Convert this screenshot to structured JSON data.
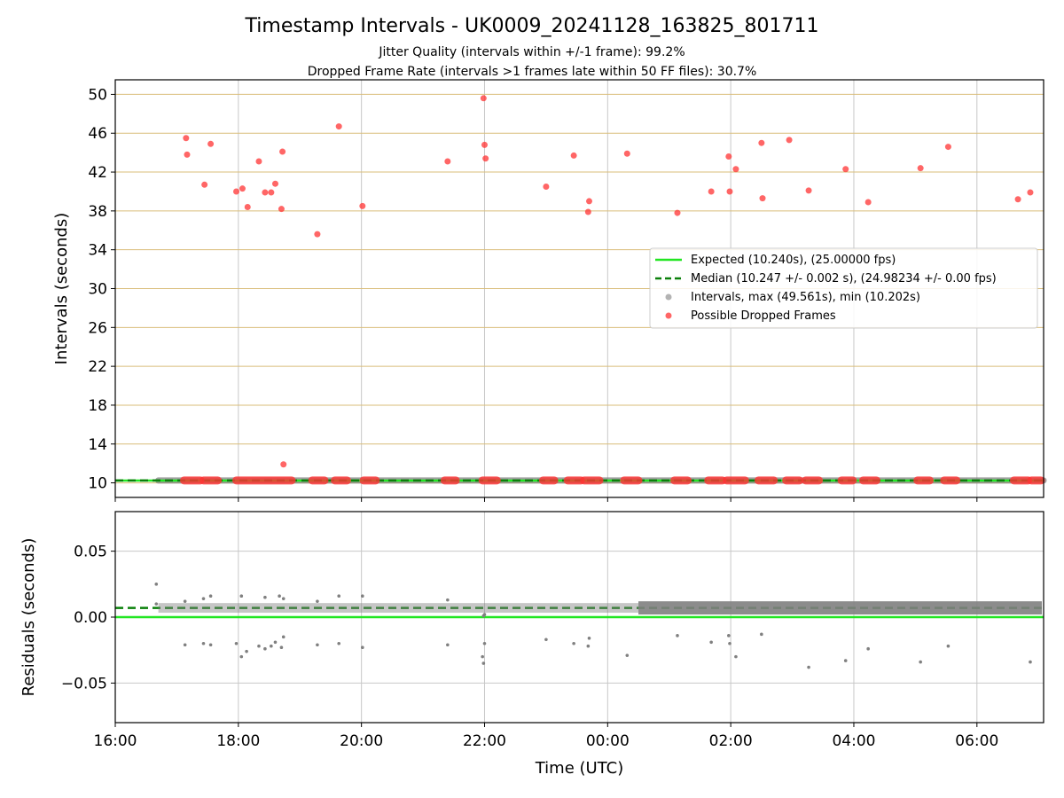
{
  "figure": {
    "title": "Timestamp Intervals - UK0009_20241128_163825_801711",
    "subtitle_line1": "Jitter Quality (intervals within +/-1 frame): 99.2%",
    "subtitle_line2": "Dropped Frame Rate (intervals >1 frames late within 50 FF files): 30.7%"
  },
  "colors": {
    "expected": "#22e622",
    "median": "#0a800a",
    "intervals": "#808080",
    "dropped": "#ff3333",
    "hgrid_top": "#d9bd7a",
    "grid": "#c8c8c8"
  },
  "chart_data": [
    {
      "type": "scatter",
      "name": "intervals_panel",
      "xlabel": "",
      "ylabel": "Intervals (seconds)",
      "xlim": [
        "16:00",
        "07:05"
      ],
      "ylim": [
        8.5,
        51.5
      ],
      "yticks": [
        10,
        14,
        18,
        22,
        26,
        30,
        34,
        38,
        42,
        46,
        50
      ],
      "grid": "both",
      "legend_position": "center-right",
      "legend": [
        "Expected (10.240s), (25.00000 fps)",
        "Median (10.247 +/- 0.002 s), (24.98234 +/- 0.00 fps)",
        "Intervals, max (49.561s), min (10.202s)",
        "Possible Dropped Frames"
      ],
      "lines": [
        {
          "label_index": 0,
          "y": 10.24,
          "style": "solid"
        },
        {
          "label_index": 1,
          "y": 10.247,
          "style": "dashed"
        }
      ],
      "interval_band": {
        "x_start": "16:42",
        "x_end": "07:05",
        "y": 10.247
      },
      "dropped_frames_high": [
        [
          "17:09",
          45.5
        ],
        [
          "17:10",
          43.8
        ],
        [
          "17:27",
          40.7
        ],
        [
          "17:33",
          44.9
        ],
        [
          "17:58",
          40.0
        ],
        [
          "18:04",
          40.3
        ],
        [
          "18:09",
          38.4
        ],
        [
          "18:20",
          43.1
        ],
        [
          "18:26",
          39.9
        ],
        [
          "18:32",
          39.9
        ],
        [
          "18:36",
          40.8
        ],
        [
          "18:42",
          38.2
        ],
        [
          "18:43",
          44.1
        ],
        [
          "18:44",
          11.9
        ],
        [
          "19:17",
          35.6
        ],
        [
          "19:38",
          46.7
        ],
        [
          "20:01",
          38.5
        ],
        [
          "21:24",
          43.1
        ],
        [
          "21:59",
          49.6
        ],
        [
          "22:00",
          44.8
        ],
        [
          "22:01",
          43.4
        ],
        [
          "23:00",
          40.5
        ],
        [
          "23:27",
          43.7
        ],
        [
          "23:41",
          37.9
        ],
        [
          "23:42",
          39.0
        ],
        [
          "00:19",
          43.9
        ],
        [
          "01:08",
          37.8
        ],
        [
          "01:41",
          40.0
        ],
        [
          "01:58",
          43.6
        ],
        [
          "01:59",
          40.0
        ],
        [
          "02:05",
          42.3
        ],
        [
          "02:30",
          45.0
        ],
        [
          "02:31",
          39.3
        ],
        [
          "02:57",
          45.3
        ],
        [
          "03:16",
          40.1
        ],
        [
          "03:52",
          42.3
        ],
        [
          "04:14",
          38.9
        ],
        [
          "05:05",
          42.4
        ],
        [
          "05:32",
          44.6
        ],
        [
          "06:40",
          39.2
        ],
        [
          "06:52",
          39.9
        ]
      ],
      "dropped_frames_base_spans": [
        [
          "17:07",
          "17:23"
        ],
        [
          "17:26",
          "17:40"
        ],
        [
          "17:58",
          "18:52"
        ],
        [
          "19:12",
          "19:24"
        ],
        [
          "19:34",
          "19:46"
        ],
        [
          "20:02",
          "20:14"
        ],
        [
          "21:21",
          "21:32"
        ],
        [
          "21:58",
          "22:12"
        ],
        [
          "22:57",
          "23:08"
        ],
        [
          "23:21",
          "23:34"
        ],
        [
          "23:37",
          "23:52"
        ],
        [
          "00:16",
          "00:30"
        ],
        [
          "01:05",
          "01:18"
        ],
        [
          "01:38",
          "01:52"
        ],
        [
          "01:56",
          "02:14"
        ],
        [
          "02:27",
          "02:42"
        ],
        [
          "02:54",
          "03:07"
        ],
        [
          "03:13",
          "03:26"
        ],
        [
          "03:48",
          "03:59"
        ],
        [
          "04:09",
          "04:22"
        ],
        [
          "05:02",
          "05:14"
        ],
        [
          "05:28",
          "05:40"
        ],
        [
          "06:36",
          "06:50"
        ],
        [
          "06:53",
          "07:05"
        ]
      ]
    },
    {
      "type": "scatter",
      "name": "residuals_panel",
      "xlabel": "Time (UTC)",
      "ylabel": "Residuals (seconds)",
      "xlim": [
        "16:00",
        "07:05"
      ],
      "ylim": [
        -0.08,
        0.08
      ],
      "yticks": [
        0.05,
        0.0,
        -0.05
      ],
      "ytick_labels": [
        "0.05",
        "0.00",
        "−0.05"
      ],
      "xticks": [
        "16:00",
        "18:00",
        "20:00",
        "22:00",
        "00:00",
        "02:00",
        "04:00",
        "06:00"
      ],
      "grid": "both",
      "expected_line_y": 0.0,
      "median_line_y": 0.007,
      "residual_band": {
        "x_start": "16:42",
        "x_end": "07:05",
        "y_min": 0.002,
        "y_max": 0.012,
        "dense_from": "00:30"
      },
      "residual_outliers": [
        [
          "16:40",
          0.025
        ],
        [
          "17:08",
          -0.021
        ],
        [
          "17:26",
          -0.02
        ],
        [
          "17:33",
          -0.021
        ],
        [
          "17:58",
          -0.02
        ],
        [
          "18:03",
          -0.03
        ],
        [
          "18:08",
          -0.026
        ],
        [
          "18:20",
          -0.022
        ],
        [
          "18:26",
          -0.024
        ],
        [
          "18:32",
          -0.022
        ],
        [
          "18:36",
          -0.019
        ],
        [
          "18:42",
          -0.023
        ],
        [
          "18:44",
          -0.015
        ],
        [
          "19:17",
          -0.021
        ],
        [
          "19:38",
          -0.02
        ],
        [
          "20:01",
          -0.023
        ],
        [
          "21:24",
          -0.021
        ],
        [
          "21:58",
          -0.03
        ],
        [
          "21:59",
          -0.035
        ],
        [
          "22:00",
          -0.02
        ],
        [
          "23:00",
          -0.017
        ],
        [
          "23:27",
          -0.02
        ],
        [
          "23:41",
          -0.022
        ],
        [
          "23:42",
          -0.016
        ],
        [
          "00:19",
          -0.029
        ],
        [
          "01:08",
          -0.014
        ],
        [
          "01:41",
          -0.019
        ],
        [
          "01:58",
          -0.014
        ],
        [
          "01:59",
          -0.02
        ],
        [
          "02:05",
          -0.03
        ],
        [
          "02:30",
          -0.013
        ],
        [
          "03:16",
          -0.038
        ],
        [
          "03:52",
          -0.033
        ],
        [
          "04:14",
          -0.024
        ],
        [
          "05:05",
          -0.034
        ],
        [
          "05:32",
          -0.022
        ],
        [
          "06:52",
          -0.034
        ],
        [
          "16:40",
          0.01
        ],
        [
          "17:08",
          0.012
        ],
        [
          "17:26",
          0.014
        ],
        [
          "17:33",
          0.016
        ],
        [
          "18:03",
          0.016
        ],
        [
          "18:26",
          0.015
        ],
        [
          "18:40",
          0.016
        ],
        [
          "18:44",
          0.014
        ],
        [
          "19:17",
          0.012
        ],
        [
          "19:38",
          0.016
        ],
        [
          "20:01",
          0.016
        ],
        [
          "21:24",
          0.013
        ],
        [
          "21:59",
          0.001
        ],
        [
          "22:00",
          0.002
        ]
      ]
    }
  ]
}
